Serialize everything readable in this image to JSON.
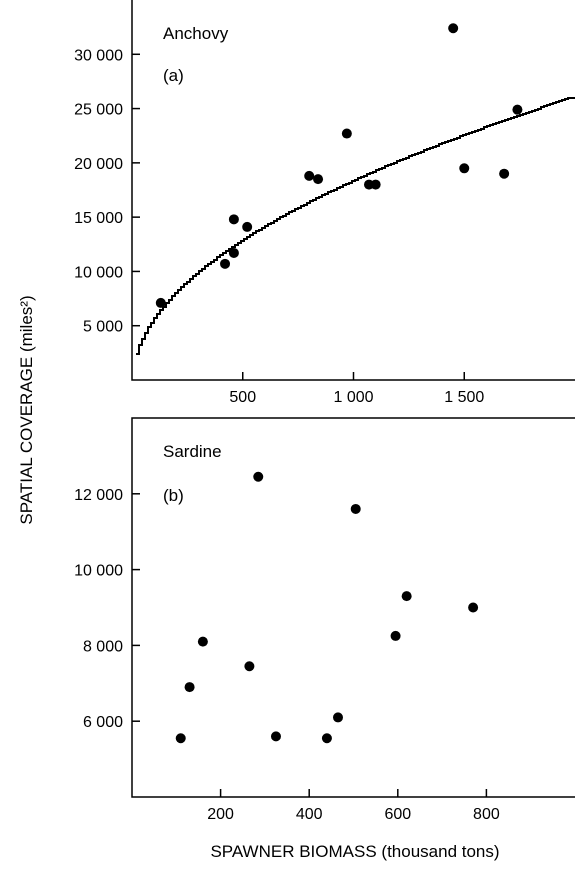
{
  "y_axis_label": "SPATIAL COVERAGE (miles²)",
  "x_axis_label": "SPAWNER BIOMASS (thousand tons)",
  "chart_data": [
    {
      "type": "scatter",
      "title": "Anchovy",
      "panel_label": "(a)",
      "xlim": [
        0,
        2000
      ],
      "ylim": [
        0,
        35000
      ],
      "x_ticks": [
        500,
        1000,
        1500
      ],
      "x_tick_labels": [
        "500",
        "1 000",
        "1 500"
      ],
      "y_ticks": [
        5000,
        10000,
        15000,
        20000,
        25000,
        30000
      ],
      "y_tick_labels": [
        "5 000",
        "10 000",
        "15 000",
        "20 000",
        "25 000",
        "30 000"
      ],
      "points": [
        {
          "x": 130,
          "y": 7100
        },
        {
          "x": 420,
          "y": 10700
        },
        {
          "x": 460,
          "y": 11700
        },
        {
          "x": 460,
          "y": 14800
        },
        {
          "x": 520,
          "y": 14100
        },
        {
          "x": 800,
          "y": 18800
        },
        {
          "x": 840,
          "y": 18500
        },
        {
          "x": 970,
          "y": 22700
        },
        {
          "x": 1070,
          "y": 18000
        },
        {
          "x": 1100,
          "y": 18000
        },
        {
          "x": 1450,
          "y": 32400
        },
        {
          "x": 1500,
          "y": 19500
        },
        {
          "x": 1680,
          "y": 19000
        },
        {
          "x": 1740,
          "y": 24900
        }
      ],
      "fit_curve": {
        "form": "power",
        "a": 550,
        "b": 0.508,
        "x_range": [
          15,
          2000
        ]
      },
      "grid": false
    },
    {
      "type": "scatter",
      "title": "Sardine",
      "panel_label": "(b)",
      "xlim": [
        0,
        1000
      ],
      "ylim": [
        4000,
        14000
      ],
      "x_ticks": [
        200,
        400,
        600,
        800
      ],
      "x_tick_labels": [
        "200",
        "400",
        "600",
        "800"
      ],
      "y_ticks": [
        6000,
        8000,
        10000,
        12000
      ],
      "y_tick_labels": [
        "6 000",
        "8 000",
        "10 000",
        "12 000"
      ],
      "points": [
        {
          "x": 110,
          "y": 5550
        },
        {
          "x": 130,
          "y": 6900
        },
        {
          "x": 160,
          "y": 8100
        },
        {
          "x": 265,
          "y": 7450
        },
        {
          "x": 285,
          "y": 12450
        },
        {
          "x": 325,
          "y": 5600
        },
        {
          "x": 440,
          "y": 5550
        },
        {
          "x": 465,
          "y": 6100
        },
        {
          "x": 505,
          "y": 11600
        },
        {
          "x": 595,
          "y": 8250
        },
        {
          "x": 620,
          "y": 9300
        },
        {
          "x": 770,
          "y": 9000
        }
      ],
      "grid": false
    }
  ]
}
